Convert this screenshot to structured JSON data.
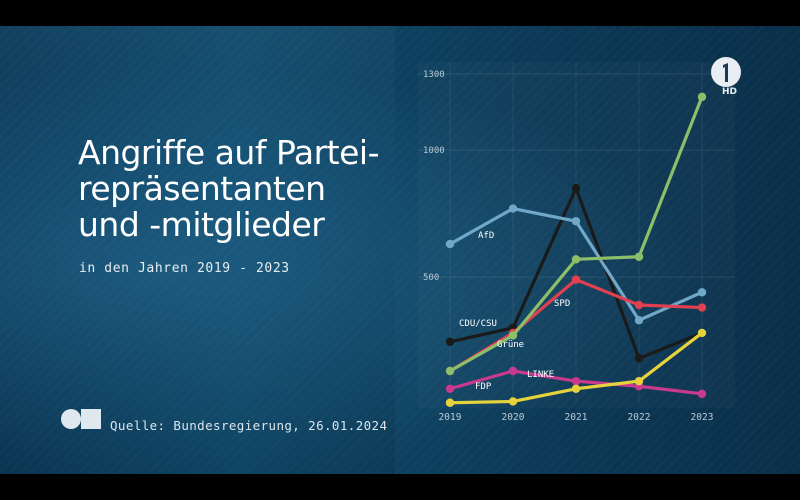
{
  "header": {
    "title_lines": [
      "Angriffe auf Partei-",
      "repräsentanten",
      "und -mitglieder"
    ],
    "subtitle": "in den Jahren 2019 - 2023"
  },
  "footer": {
    "source": "Quelle: Bundesregierung, 26.01.2024"
  },
  "branding": {
    "channel_logo_icon": "ard-one-logo-icon",
    "hd_label": "HD",
    "brand_icon": "circle-square-logo-icon"
  },
  "colors": {
    "AfD": "#6fa8c9",
    "CDU/CSU": "#1a1a1a",
    "SPD": "#e0404f",
    "Grüne": "#8dbf6a",
    "FDP": "#e6d23a",
    "LINKE": "#c93a8e",
    "axis_text": "#b9cad6",
    "label_text": "#ffffff"
  },
  "chart_data": {
    "type": "line",
    "title": "Angriffe auf Parteirepräsentanten und -mitglieder",
    "xlabel": "",
    "ylabel": "",
    "categories": [
      "2019",
      "2020",
      "2021",
      "2022",
      "2023"
    ],
    "yticks": [
      1300,
      1000,
      500
    ],
    "ylim": [
      0,
      1300
    ],
    "grid": true,
    "series": [
      {
        "name": "AfD",
        "values": [
          630,
          770,
          720,
          330,
          440
        ]
      },
      {
        "name": "CDU/CSU",
        "values": [
          245,
          300,
          850,
          180,
          280
        ]
      },
      {
        "name": "SPD",
        "values": [
          130,
          280,
          490,
          390,
          380
        ]
      },
      {
        "name": "Grüne",
        "values": [
          130,
          270,
          570,
          580,
          1210
        ]
      },
      {
        "name": "LINKE",
        "values": [
          60,
          130,
          90,
          70,
          40
        ]
      },
      {
        "name": "FDP",
        "values": [
          5,
          10,
          60,
          90,
          280
        ]
      }
    ]
  }
}
